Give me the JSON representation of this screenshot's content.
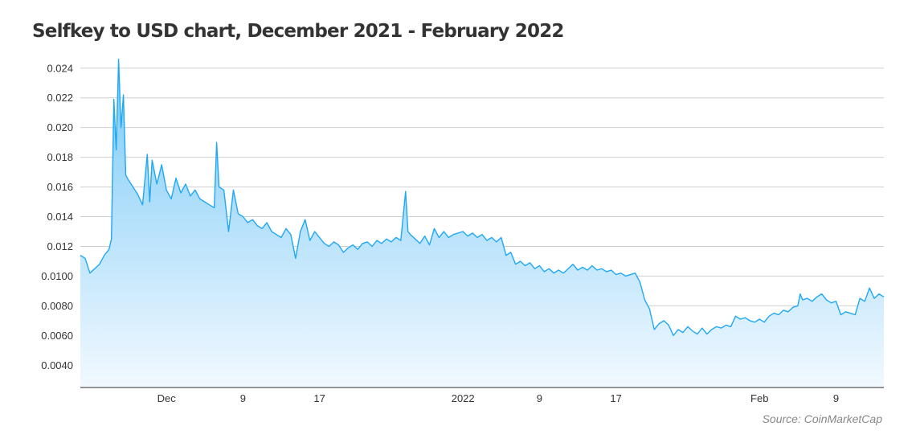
{
  "title": "Selfkey to USD chart, December 2021 - February 2022",
  "source": "Source: CoinMarketCap",
  "chart_data": {
    "type": "area",
    "title": "Selfkey to USD chart, December 2021 - February 2022",
    "xlabel": "",
    "ylabel": "",
    "ylim": [
      0.0025,
      0.0248
    ],
    "grid": true,
    "legend": "none",
    "line_color": "#1fa8f5",
    "fill_top_color": "#79c9f7",
    "fill_bottom_color": "#f2f9ff",
    "y_ticks": [
      {
        "value": 0.004,
        "label": "0.0040"
      },
      {
        "value": 0.006,
        "label": "0.0060"
      },
      {
        "value": 0.008,
        "label": "0.0080"
      },
      {
        "value": 0.01,
        "label": "0.0100"
      },
      {
        "value": 0.012,
        "label": "0.012"
      },
      {
        "value": 0.014,
        "label": "0.014"
      },
      {
        "value": 0.016,
        "label": "0.016"
      },
      {
        "value": 0.018,
        "label": "0.018"
      },
      {
        "value": 0.02,
        "label": "0.020"
      },
      {
        "value": 0.022,
        "label": "0.022"
      },
      {
        "value": 0.024,
        "label": "0.024"
      }
    ],
    "x_ticks": [
      {
        "date": "2021-12-01",
        "label": "Dec"
      },
      {
        "date": "2021-12-09",
        "label": "9"
      },
      {
        "date": "2021-12-17",
        "label": "17"
      },
      {
        "date": "2022-01-01",
        "label": "2022"
      },
      {
        "date": "2022-01-09",
        "label": "9"
      },
      {
        "date": "2022-01-17",
        "label": "17"
      },
      {
        "date": "2022-02-01",
        "label": "Feb"
      },
      {
        "date": "2022-02-09",
        "label": "9"
      }
    ],
    "x_range": [
      "2021-11-22",
      "2022-02-14"
    ],
    "series": [
      {
        "points": [
          [
            "2021-11-22",
            0.0114
          ],
          [
            "2021-11-22T12:00",
            0.0112
          ],
          [
            "2021-11-23",
            0.0102
          ],
          [
            "2021-11-23T12:00",
            0.0105
          ],
          [
            "2021-11-24",
            0.0108
          ],
          [
            "2021-11-24T12:00",
            0.0114
          ],
          [
            "2021-11-25",
            0.0118
          ],
          [
            "2021-11-25T06:00",
            0.0125
          ],
          [
            "2021-11-25T12:00",
            0.0219
          ],
          [
            "2021-11-25T18:00",
            0.0185
          ],
          [
            "2021-11-26",
            0.0246
          ],
          [
            "2021-11-26T06:00",
            0.02
          ],
          [
            "2021-11-26T12:00",
            0.0222
          ],
          [
            "2021-11-26T18:00",
            0.0168
          ],
          [
            "2021-11-27",
            0.0165
          ],
          [
            "2021-11-27T12:00",
            0.016
          ],
          [
            "2021-11-28",
            0.0155
          ],
          [
            "2021-11-28T12:00",
            0.0148
          ],
          [
            "2021-11-29",
            0.0182
          ],
          [
            "2021-11-29T06:00",
            0.015
          ],
          [
            "2021-11-29T12:00",
            0.0178
          ],
          [
            "2021-11-30",
            0.0162
          ],
          [
            "2021-11-30T12:00",
            0.0175
          ],
          [
            "2021-12-01",
            0.0158
          ],
          [
            "2021-12-01T12:00",
            0.0152
          ],
          [
            "2021-12-02",
            0.0166
          ],
          [
            "2021-12-02T12:00",
            0.0156
          ],
          [
            "2021-12-03",
            0.0162
          ],
          [
            "2021-12-03T12:00",
            0.0154
          ],
          [
            "2021-12-04",
            0.0158
          ],
          [
            "2021-12-04T12:00",
            0.0152
          ],
          [
            "2021-12-05",
            0.015
          ],
          [
            "2021-12-05T12:00",
            0.0148
          ],
          [
            "2021-12-06",
            0.0146
          ],
          [
            "2021-12-06T06:00",
            0.019
          ],
          [
            "2021-12-06T12:00",
            0.016
          ],
          [
            "2021-12-07",
            0.0158
          ],
          [
            "2021-12-07T12:00",
            0.013
          ],
          [
            "2021-12-08",
            0.0158
          ],
          [
            "2021-12-08T12:00",
            0.0142
          ],
          [
            "2021-12-09",
            0.014
          ],
          [
            "2021-12-09T12:00",
            0.0136
          ],
          [
            "2021-12-10",
            0.0138
          ],
          [
            "2021-12-10T12:00",
            0.0134
          ],
          [
            "2021-12-11",
            0.0132
          ],
          [
            "2021-12-11T12:00",
            0.0136
          ],
          [
            "2021-12-12",
            0.013
          ],
          [
            "2021-12-12T12:00",
            0.0128
          ],
          [
            "2021-12-13",
            0.0126
          ],
          [
            "2021-12-13T12:00",
            0.0132
          ],
          [
            "2021-12-14",
            0.0128
          ],
          [
            "2021-12-14T12:00",
            0.0112
          ],
          [
            "2021-12-15",
            0.013
          ],
          [
            "2021-12-15T12:00",
            0.0138
          ],
          [
            "2021-12-16",
            0.0124
          ],
          [
            "2021-12-16T12:00",
            0.013
          ],
          [
            "2021-12-17",
            0.0126
          ],
          [
            "2021-12-17T12:00",
            0.0122
          ],
          [
            "2021-12-18",
            0.012
          ],
          [
            "2021-12-18T12:00",
            0.0123
          ],
          [
            "2021-12-19",
            0.0121
          ],
          [
            "2021-12-19T12:00",
            0.0116
          ],
          [
            "2021-12-20",
            0.0119
          ],
          [
            "2021-12-20T12:00",
            0.0121
          ],
          [
            "2021-12-21",
            0.0118
          ],
          [
            "2021-12-21T12:00",
            0.0122
          ],
          [
            "2021-12-22",
            0.0123
          ],
          [
            "2021-12-22T12:00",
            0.012
          ],
          [
            "2021-12-23",
            0.0124
          ],
          [
            "2021-12-23T12:00",
            0.0122
          ],
          [
            "2021-12-24",
            0.0125
          ],
          [
            "2021-12-24T12:00",
            0.0123
          ],
          [
            "2021-12-25",
            0.0126
          ],
          [
            "2021-12-25T12:00",
            0.0124
          ],
          [
            "2021-12-26",
            0.0157
          ],
          [
            "2021-12-26T06:00",
            0.013
          ],
          [
            "2021-12-26T12:00",
            0.0128
          ],
          [
            "2021-12-27",
            0.0125
          ],
          [
            "2021-12-27T12:00",
            0.0122
          ],
          [
            "2021-12-28",
            0.0127
          ],
          [
            "2021-12-28T12:00",
            0.0121
          ],
          [
            "2021-12-29",
            0.0132
          ],
          [
            "2021-12-29T12:00",
            0.0126
          ],
          [
            "2021-12-30",
            0.013
          ],
          [
            "2021-12-30T12:00",
            0.0126
          ],
          [
            "2021-12-31",
            0.0128
          ],
          [
            "2022-01-01",
            0.013
          ],
          [
            "2022-01-01T12:00",
            0.0127
          ],
          [
            "2022-01-02",
            0.0129
          ],
          [
            "2022-01-02T12:00",
            0.0126
          ],
          [
            "2022-01-03",
            0.0128
          ],
          [
            "2022-01-03T12:00",
            0.0124
          ],
          [
            "2022-01-04",
            0.0126
          ],
          [
            "2022-01-04T12:00",
            0.0123
          ],
          [
            "2022-01-05",
            0.0126
          ],
          [
            "2022-01-05T12:00",
            0.0114
          ],
          [
            "2022-01-06",
            0.0116
          ],
          [
            "2022-01-06T12:00",
            0.0108
          ],
          [
            "2022-01-07",
            0.011
          ],
          [
            "2022-01-07T12:00",
            0.0107
          ],
          [
            "2022-01-08",
            0.0109
          ],
          [
            "2022-01-08T12:00",
            0.0105
          ],
          [
            "2022-01-09",
            0.0107
          ],
          [
            "2022-01-09T12:00",
            0.0103
          ],
          [
            "2022-01-10",
            0.0105
          ],
          [
            "2022-01-10T12:00",
            0.0102
          ],
          [
            "2022-01-11",
            0.0104
          ],
          [
            "2022-01-11T12:00",
            0.0102
          ],
          [
            "2022-01-12",
            0.0105
          ],
          [
            "2022-01-12T12:00",
            0.0108
          ],
          [
            "2022-01-13",
            0.0104
          ],
          [
            "2022-01-13T12:00",
            0.0106
          ],
          [
            "2022-01-14",
            0.0104
          ],
          [
            "2022-01-14T12:00",
            0.0107
          ],
          [
            "2022-01-15",
            0.0104
          ],
          [
            "2022-01-15T12:00",
            0.0105
          ],
          [
            "2022-01-16",
            0.0103
          ],
          [
            "2022-01-16T12:00",
            0.0104
          ],
          [
            "2022-01-17",
            0.0101
          ],
          [
            "2022-01-17T12:00",
            0.0102
          ],
          [
            "2022-01-18",
            0.01
          ],
          [
            "2022-01-18T12:00",
            0.0101
          ],
          [
            "2022-01-19",
            0.0102
          ],
          [
            "2022-01-19T12:00",
            0.0096
          ],
          [
            "2022-01-20",
            0.0084
          ],
          [
            "2022-01-20T12:00",
            0.0078
          ],
          [
            "2022-01-21",
            0.0064
          ],
          [
            "2022-01-21T12:00",
            0.0068
          ],
          [
            "2022-01-22",
            0.007
          ],
          [
            "2022-01-22T12:00",
            0.0067
          ],
          [
            "2022-01-23",
            0.006
          ],
          [
            "2022-01-23T12:00",
            0.0064
          ],
          [
            "2022-01-24",
            0.0062
          ],
          [
            "2022-01-24T12:00",
            0.0066
          ],
          [
            "2022-01-25",
            0.0063
          ],
          [
            "2022-01-25T12:00",
            0.0061
          ],
          [
            "2022-01-26",
            0.0065
          ],
          [
            "2022-01-26T12:00",
            0.0061
          ],
          [
            "2022-01-27",
            0.0064
          ],
          [
            "2022-01-27T12:00",
            0.0066
          ],
          [
            "2022-01-28",
            0.0065
          ],
          [
            "2022-01-28T12:00",
            0.0067
          ],
          [
            "2022-01-29",
            0.0066
          ],
          [
            "2022-01-29T12:00",
            0.0073
          ],
          [
            "2022-01-30",
            0.0071
          ],
          [
            "2022-01-30T12:00",
            0.0072
          ],
          [
            "2022-01-31",
            0.007
          ],
          [
            "2022-01-31T12:00",
            0.0069
          ],
          [
            "2022-02-01",
            0.0071
          ],
          [
            "2022-02-01T12:00",
            0.0069
          ],
          [
            "2022-02-02",
            0.0073
          ],
          [
            "2022-02-02T12:00",
            0.0075
          ],
          [
            "2022-02-03",
            0.0074
          ],
          [
            "2022-02-03T12:00",
            0.0077
          ],
          [
            "2022-02-04",
            0.0076
          ],
          [
            "2022-02-04T12:00",
            0.0079
          ],
          [
            "2022-02-05",
            0.008
          ],
          [
            "2022-02-05T06:00",
            0.0088
          ],
          [
            "2022-02-05T12:00",
            0.0084
          ],
          [
            "2022-02-06",
            0.0085
          ],
          [
            "2022-02-06T12:00",
            0.0083
          ],
          [
            "2022-02-07",
            0.0086
          ],
          [
            "2022-02-07T12:00",
            0.0088
          ],
          [
            "2022-02-08",
            0.0084
          ],
          [
            "2022-02-08T12:00",
            0.0082
          ],
          [
            "2022-02-09",
            0.0083
          ],
          [
            "2022-02-09T12:00",
            0.0074
          ],
          [
            "2022-02-10",
            0.0076
          ],
          [
            "2022-02-10T12:00",
            0.0075
          ],
          [
            "2022-02-11",
            0.0074
          ],
          [
            "2022-02-11T12:00",
            0.0085
          ],
          [
            "2022-02-12",
            0.0083
          ],
          [
            "2022-02-12T12:00",
            0.0092
          ],
          [
            "2022-02-13",
            0.0085
          ],
          [
            "2022-02-13T12:00",
            0.0088
          ],
          [
            "2022-02-14",
            0.0086
          ]
        ]
      }
    ]
  }
}
